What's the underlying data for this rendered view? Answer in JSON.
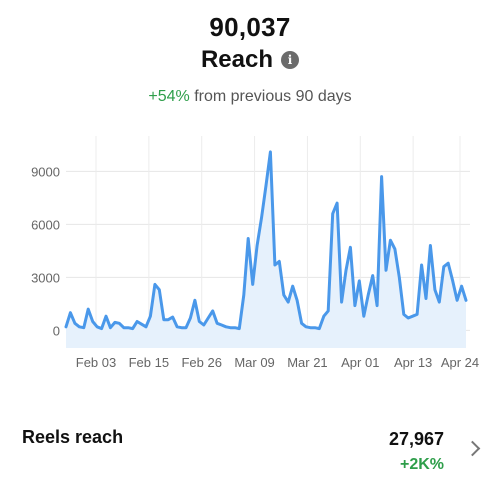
{
  "summary": {
    "total": "90,037",
    "metric": "Reach",
    "change": "+54%",
    "period": "from previous 90 days"
  },
  "chart_data": {
    "type": "area",
    "y_ticks": [
      0,
      3000,
      6000,
      9000
    ],
    "y_tick_labels": [
      "0",
      "3000",
      "6000",
      "9000"
    ],
    "x_tick_labels": [
      "Feb 03",
      "Feb 15",
      "Feb 26",
      "Mar 09",
      "Mar 21",
      "Apr 01",
      "Apr 13",
      "Apr 24"
    ],
    "ylim": [
      -1000,
      11000
    ],
    "grid": true,
    "line_color": "#4a98ea",
    "fill_color": "#e6f1fc",
    "values": [
      200,
      1000,
      400,
      200,
      150,
      1200,
      500,
      200,
      100,
      800,
      150,
      450,
      400,
      150,
      150,
      100,
      500,
      350,
      200,
      800,
      2600,
      2300,
      600,
      600,
      750,
      200,
      150,
      150,
      700,
      1700,
      500,
      300,
      700,
      1100,
      400,
      300,
      200,
      150,
      150,
      100,
      2000,
      5200,
      2600,
      4800,
      6400,
      8200,
      10100,
      3700,
      3900,
      2000,
      1600,
      2500,
      1700,
      400,
      200,
      150,
      150,
      100,
      800,
      1100,
      6600,
      7200,
      1600,
      3400,
      4700,
      1400,
      2800,
      800,
      2000,
      3100,
      1400,
      8700,
      3400,
      5100,
      4600,
      3000,
      900,
      700,
      800,
      900,
      3700,
      1800,
      4800,
      2300,
      1600,
      3600,
      3800,
      2800,
      1700,
      2500,
      1700
    ]
  },
  "reels": {
    "label": "Reels reach",
    "value": "27,967",
    "change": "+2K%"
  }
}
